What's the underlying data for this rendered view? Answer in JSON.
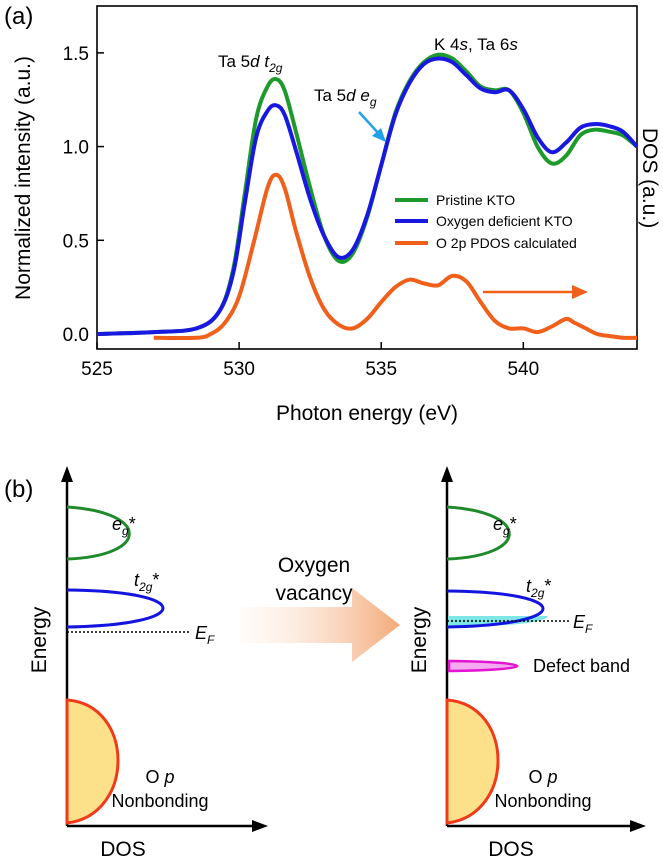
{
  "panel_a": {
    "label": "(a)",
    "annotations": {
      "t2g_main": "Ta 5",
      "t2g_d": "d",
      "t2g_t": "t",
      "t2g_sub": "2g",
      "eg_main": "Ta 5",
      "eg_d": "d",
      "eg_e": "e",
      "eg_sub": "g",
      "k4s_a": "K 4",
      "k4s_b": "s",
      "k4s_c": ", Ta 6",
      "k4s_d": "s"
    }
  },
  "panel_b": {
    "label": "(b)",
    "left": {
      "eg": "e",
      "eg_sub": "g",
      "eg_star": "*",
      "t2g": "t",
      "t2g_sub": "2g",
      "t2g_star": "*",
      "ef": "E",
      "ef_sub": "F",
      "op_o": "O",
      "op_p": "p",
      "nonbonding": "Nonbonding",
      "ylabel": "Energy",
      "xlabel": "DOS"
    },
    "arrow_text_line1": "Oxygen",
    "arrow_text_line2": "vacancy",
    "right": {
      "eg": "e",
      "eg_sub": "g",
      "eg_star": "*",
      "t2g": "t",
      "t2g_sub": "2g",
      "t2g_star": "*",
      "ef": "E",
      "ef_sub": "F",
      "defect": "Defect band",
      "op_o": "O",
      "op_p": "p",
      "nonbonding": "Nonbonding",
      "ylabel": "Energy",
      "xlabel": "DOS"
    }
  },
  "chart_data": {
    "type": "line",
    "xlabel": "Photon energy (eV)",
    "ylabel": "Normalized intensity (a.u.)",
    "y2label": "DOS (a.u.)",
    "xlim": [
      525,
      544
    ],
    "ylim": [
      -0.08,
      1.75
    ],
    "xticks": [
      "525",
      "530",
      "535",
      "540"
    ],
    "yticks": [
      "0.0",
      "0.5",
      "1.0",
      "1.5"
    ],
    "xtick_values": [
      525,
      530,
      535,
      540
    ],
    "ytick_values": [
      0.0,
      0.5,
      1.0,
      1.5
    ],
    "legend_position": "center-right",
    "series": [
      {
        "name": "Pristine KTO",
        "color": "#1e9a2c",
        "x": [
          525,
          527,
          528.5,
          529.3,
          529.8,
          530.2,
          530.6,
          531.0,
          531.3,
          531.6,
          532.0,
          532.5,
          533.0,
          533.5,
          534.0,
          534.5,
          535.0,
          535.5,
          536.0,
          536.5,
          537.0,
          537.5,
          538.0,
          538.5,
          539.0,
          539.5,
          540.0,
          540.5,
          541.0,
          541.5,
          542.0,
          542.5,
          543.0,
          543.5,
          544.0
        ],
        "y": [
          0.0,
          0.01,
          0.03,
          0.12,
          0.35,
          0.75,
          1.15,
          1.32,
          1.36,
          1.3,
          1.08,
          0.78,
          0.52,
          0.39,
          0.43,
          0.62,
          0.9,
          1.18,
          1.35,
          1.45,
          1.49,
          1.47,
          1.4,
          1.32,
          1.3,
          1.3,
          1.18,
          1.0,
          0.91,
          0.95,
          1.06,
          1.09,
          1.08,
          1.06,
          1.0
        ]
      },
      {
        "name": "Oxygen deficient KTO",
        "color": "#1818e0",
        "x": [
          525,
          527,
          528.5,
          529.3,
          529.8,
          530.2,
          530.6,
          531.0,
          531.3,
          531.6,
          532.0,
          532.5,
          533.0,
          533.5,
          534.0,
          534.5,
          535.0,
          535.5,
          536.0,
          536.5,
          537.0,
          537.5,
          538.0,
          538.5,
          539.0,
          539.5,
          540.0,
          540.5,
          541.0,
          541.5,
          542.0,
          542.5,
          543.0,
          543.5,
          544.0
        ],
        "y": [
          0.0,
          0.01,
          0.03,
          0.12,
          0.33,
          0.7,
          1.05,
          1.19,
          1.22,
          1.17,
          0.98,
          0.72,
          0.52,
          0.41,
          0.45,
          0.63,
          0.9,
          1.17,
          1.34,
          1.44,
          1.47,
          1.45,
          1.38,
          1.31,
          1.29,
          1.3,
          1.2,
          1.05,
          0.97,
          1.02,
          1.1,
          1.12,
          1.11,
          1.08,
          1.0
        ]
      },
      {
        "name": "O 2p PDOS calculated",
        "color": "#f0601a",
        "x": [
          527,
          528.5,
          529.0,
          529.5,
          530.0,
          530.5,
          531.0,
          531.3,
          531.6,
          532.0,
          532.5,
          533.0,
          533.5,
          534.0,
          534.5,
          535.0,
          535.5,
          536.0,
          536.5,
          537.0,
          537.5,
          538.0,
          538.5,
          539.0,
          539.5,
          540.0,
          540.5,
          541.0,
          541.5,
          541.8,
          542.2,
          542.6,
          543.0,
          543.5,
          544.0
        ],
        "y": [
          -0.02,
          -0.02,
          0.0,
          0.06,
          0.2,
          0.48,
          0.78,
          0.85,
          0.78,
          0.55,
          0.3,
          0.13,
          0.05,
          0.03,
          0.08,
          0.17,
          0.25,
          0.29,
          0.27,
          0.26,
          0.31,
          0.28,
          0.17,
          0.07,
          0.03,
          0.03,
          0.01,
          0.04,
          0.08,
          0.06,
          0.03,
          0.0,
          -0.01,
          -0.02,
          -0.02
        ]
      }
    ]
  }
}
